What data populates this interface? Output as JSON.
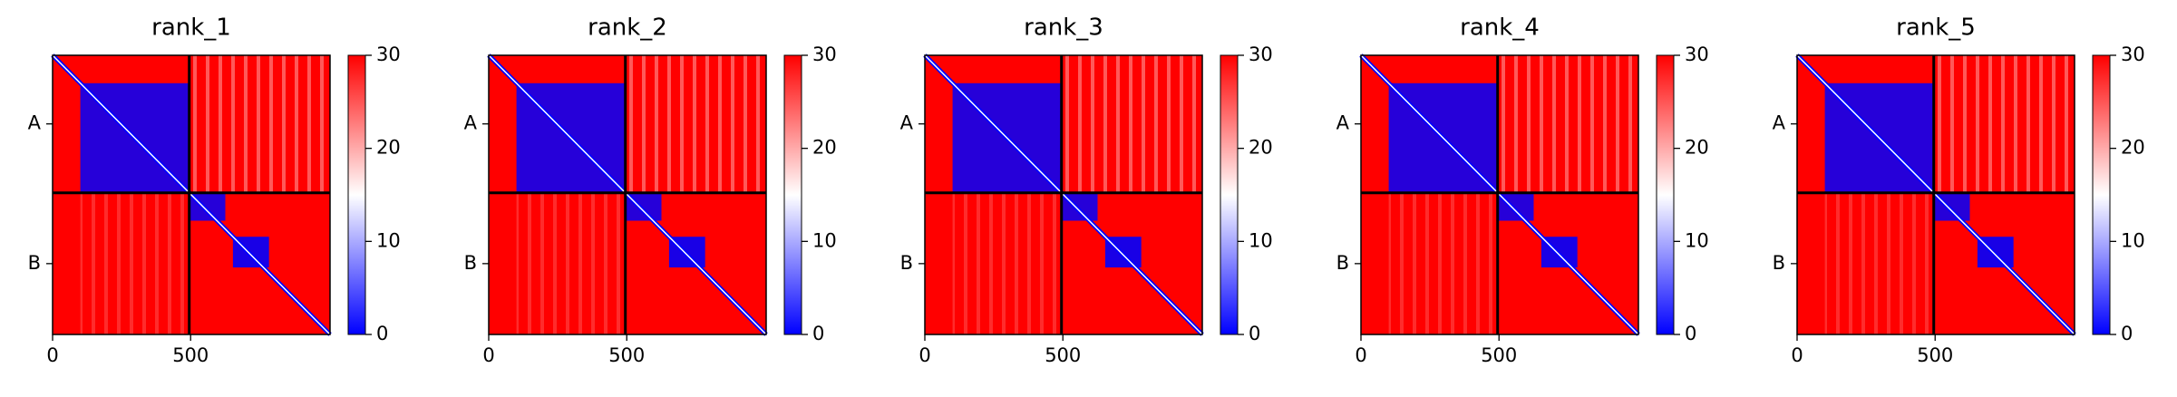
{
  "chart_data": [
    {
      "type": "heatmap",
      "title": "rank_1",
      "xlim": [
        0,
        1005
      ],
      "ylim": [
        1005,
        0
      ],
      "xticks": [
        0,
        500
      ],
      "yticks": [
        {
          "value": 247,
          "label": "A"
        },
        {
          "value": 750,
          "label": "B"
        }
      ],
      "chain_breaks": [
        495
      ],
      "clim": [
        0,
        30
      ],
      "cticks": [
        0,
        10,
        20,
        30
      ],
      "colormap": [
        "#0000ff",
        "#ffffff",
        "#ff0000"
      ]
    },
    {
      "type": "heatmap",
      "title": "rank_2",
      "xlim": [
        0,
        1005
      ],
      "ylim": [
        1005,
        0
      ],
      "xticks": [
        0,
        500
      ],
      "yticks": [
        {
          "value": 247,
          "label": "A"
        },
        {
          "value": 750,
          "label": "B"
        }
      ],
      "chain_breaks": [
        495
      ],
      "clim": [
        0,
        30
      ],
      "cticks": [
        0,
        10,
        20,
        30
      ],
      "colormap": [
        "#0000ff",
        "#ffffff",
        "#ff0000"
      ]
    },
    {
      "type": "heatmap",
      "title": "rank_3",
      "xlim": [
        0,
        1005
      ],
      "ylim": [
        1005,
        0
      ],
      "xticks": [
        0,
        500
      ],
      "yticks": [
        {
          "value": 247,
          "label": "A"
        },
        {
          "value": 750,
          "label": "B"
        }
      ],
      "chain_breaks": [
        495
      ],
      "clim": [
        0,
        30
      ],
      "cticks": [
        0,
        10,
        20,
        30
      ],
      "colormap": [
        "#0000ff",
        "#ffffff",
        "#ff0000"
      ]
    },
    {
      "type": "heatmap",
      "title": "rank_4",
      "xlim": [
        0,
        1005
      ],
      "ylim": [
        1005,
        0
      ],
      "xticks": [
        0,
        500
      ],
      "yticks": [
        {
          "value": 247,
          "label": "A"
        },
        {
          "value": 750,
          "label": "B"
        }
      ],
      "chain_breaks": [
        495
      ],
      "clim": [
        0,
        30
      ],
      "cticks": [
        0,
        10,
        20,
        30
      ],
      "colormap": [
        "#0000ff",
        "#ffffff",
        "#ff0000"
      ]
    },
    {
      "type": "heatmap",
      "title": "rank_5",
      "xlim": [
        0,
        1005
      ],
      "ylim": [
        1005,
        0
      ],
      "xticks": [
        0,
        500
      ],
      "yticks": [
        {
          "value": 247,
          "label": "A"
        },
        {
          "value": 750,
          "label": "B"
        }
      ],
      "chain_breaks": [
        495
      ],
      "clim": [
        0,
        30
      ],
      "cticks": [
        0,
        10,
        20,
        30
      ],
      "colormap": [
        "#0000ff",
        "#ffffff",
        "#ff0000"
      ]
    }
  ]
}
